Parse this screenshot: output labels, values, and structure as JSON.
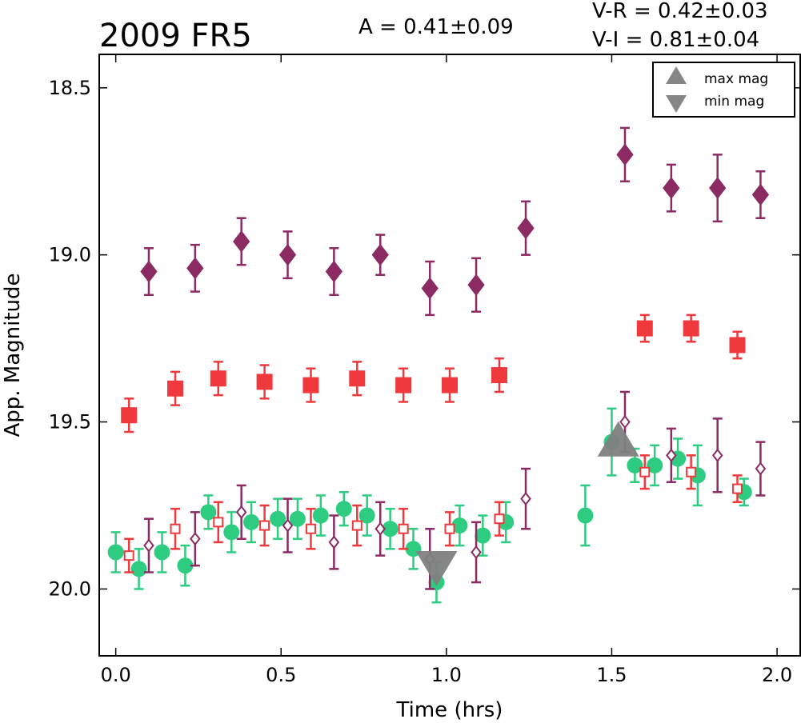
{
  "chart_data": {
    "type": "scatter",
    "title": "2009 FR5",
    "annotations": {
      "amplitude": "A  = 0.41±0.09",
      "v_r": "V-R = 0.42±0.03",
      "v_i": "V-I  = 0.81±0.04"
    },
    "xlabel": "Time (hrs)",
    "ylabel": "App. Magnitude",
    "xlim": [
      -0.05,
      2.07
    ],
    "ylim": [
      20.2,
      18.4
    ],
    "y_inverted": true,
    "x_ticks": [
      0.0,
      0.5,
      1.0,
      1.5,
      2.0
    ],
    "x_tick_labels": [
      "0.0",
      "0.5",
      "1.0",
      "1.5",
      "2.0"
    ],
    "y_ticks": [
      18.5,
      19.0,
      19.5,
      20.0
    ],
    "y_tick_labels": [
      "18.5",
      "19.0",
      "19.5",
      "20.0"
    ],
    "grid": false,
    "legend_position": "top-right",
    "legend": [
      {
        "label": "max mag",
        "marker": "triangle-up",
        "color": "#808080"
      },
      {
        "label": "min mag",
        "marker": "triangle-down",
        "color": "#808080"
      }
    ],
    "series": [
      {
        "marker": "diamond-filled",
        "color": "#8b2a63",
        "points": [
          [
            0.1,
            19.05,
            0.07
          ],
          [
            0.24,
            19.04,
            0.07
          ],
          [
            0.38,
            18.96,
            0.07
          ],
          [
            0.52,
            19.0,
            0.07
          ],
          [
            0.66,
            19.05,
            0.07
          ],
          [
            0.8,
            19.0,
            0.06
          ],
          [
            0.95,
            19.1,
            0.08
          ],
          [
            1.09,
            19.09,
            0.08
          ],
          [
            1.24,
            18.92,
            0.08
          ],
          [
            1.54,
            18.7,
            0.08
          ],
          [
            1.68,
            18.8,
            0.07
          ],
          [
            1.82,
            18.8,
            0.1
          ],
          [
            1.95,
            18.82,
            0.07
          ]
        ]
      },
      {
        "marker": "square-filled",
        "color": "#f0393c",
        "points": [
          [
            0.04,
            19.48,
            0.05
          ],
          [
            0.18,
            19.4,
            0.05
          ],
          [
            0.31,
            19.37,
            0.05
          ],
          [
            0.45,
            19.38,
            0.05
          ],
          [
            0.59,
            19.39,
            0.05
          ],
          [
            0.73,
            19.37,
            0.05
          ],
          [
            0.87,
            19.39,
            0.05
          ],
          [
            1.01,
            19.39,
            0.05
          ],
          [
            1.16,
            19.36,
            0.05
          ],
          [
            1.6,
            19.22,
            0.04
          ],
          [
            1.74,
            19.22,
            0.04
          ],
          [
            1.88,
            19.27,
            0.04
          ]
        ]
      },
      {
        "marker": "circle-filled",
        "color": "#2ecc80",
        "points": [
          [
            0.0,
            19.89,
            0.06
          ],
          [
            0.07,
            19.94,
            0.06
          ],
          [
            0.14,
            19.89,
            0.06
          ],
          [
            0.21,
            19.93,
            0.06
          ],
          [
            0.28,
            19.77,
            0.05
          ],
          [
            0.35,
            19.83,
            0.06
          ],
          [
            0.41,
            19.8,
            0.06
          ],
          [
            0.49,
            19.79,
            0.06
          ],
          [
            0.55,
            19.79,
            0.06
          ],
          [
            0.62,
            19.78,
            0.06
          ],
          [
            0.69,
            19.76,
            0.05
          ],
          [
            0.76,
            19.78,
            0.06
          ],
          [
            0.83,
            19.82,
            0.06
          ],
          [
            0.9,
            19.88,
            0.06
          ],
          [
            0.97,
            19.98,
            0.06
          ],
          [
            1.04,
            19.81,
            0.06
          ],
          [
            1.11,
            19.84,
            0.06
          ],
          [
            1.18,
            19.8,
            0.06
          ],
          [
            1.42,
            19.78,
            0.09
          ],
          [
            1.5,
            19.56,
            0.1
          ],
          [
            1.57,
            19.63,
            0.05
          ],
          [
            1.63,
            19.63,
            0.06
          ],
          [
            1.7,
            19.61,
            0.06
          ],
          [
            1.76,
            19.66,
            0.09
          ],
          [
            1.9,
            19.71,
            0.04
          ]
        ]
      },
      {
        "marker": "square-open",
        "color": "#f0393c",
        "points": [
          [
            0.04,
            19.9,
            0.05
          ],
          [
            0.18,
            19.82,
            0.06
          ],
          [
            0.31,
            19.8,
            0.06
          ],
          [
            0.45,
            19.81,
            0.06
          ],
          [
            0.59,
            19.82,
            0.06
          ],
          [
            0.73,
            19.81,
            0.06
          ],
          [
            0.87,
            19.82,
            0.06
          ],
          [
            1.01,
            19.82,
            0.05
          ],
          [
            1.16,
            19.79,
            0.05
          ],
          [
            1.6,
            19.65,
            0.05
          ],
          [
            1.74,
            19.65,
            0.05
          ],
          [
            1.88,
            19.7,
            0.04
          ]
        ]
      },
      {
        "marker": "diamond-open",
        "color": "#8b2a63",
        "points": [
          [
            0.1,
            19.87,
            0.08
          ],
          [
            0.24,
            19.85,
            0.08
          ],
          [
            0.38,
            19.77,
            0.08
          ],
          [
            0.52,
            19.81,
            0.08
          ],
          [
            0.66,
            19.86,
            0.08
          ],
          [
            0.8,
            19.82,
            0.08
          ],
          [
            0.95,
            19.91,
            0.09
          ],
          [
            1.09,
            19.89,
            0.09
          ],
          [
            1.24,
            19.73,
            0.09
          ],
          [
            1.54,
            19.5,
            0.09
          ],
          [
            1.68,
            19.6,
            0.08
          ],
          [
            1.82,
            19.6,
            0.11
          ],
          [
            1.95,
            19.64,
            0.08
          ]
        ]
      }
    ],
    "extrema_markers": [
      {
        "type": "max",
        "marker": "triangle-up",
        "x": 1.52,
        "y": 19.57,
        "color": "#808080"
      },
      {
        "type": "min",
        "marker": "triangle-down",
        "x": 0.97,
        "y": 19.92,
        "color": "#808080"
      }
    ]
  }
}
